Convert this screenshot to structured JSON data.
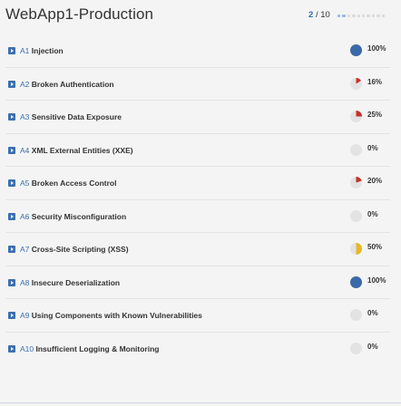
{
  "header": {
    "title": "WebApp1-Production",
    "page_current": "2",
    "page_sep_total": "/ 10",
    "page_total": 10
  },
  "colors": {
    "accent_blue": "#3b6fb0",
    "pie_full": "#3a6aa8",
    "pie_red": "#c8302a",
    "pie_yellow": "#e6b828",
    "pie_empty": "#e3e3e3"
  },
  "items": [
    {
      "code": "A1",
      "name": "Injection",
      "percent": "100%",
      "fraction": 1.0,
      "color": "#3a6aa8"
    },
    {
      "code": "A2",
      "name": "Broken Authentication",
      "percent": "16%",
      "fraction": 0.16,
      "color": "#c8302a"
    },
    {
      "code": "A3",
      "name": "Sensitive Data Exposure",
      "percent": "25%",
      "fraction": 0.25,
      "color": "#c8302a"
    },
    {
      "code": "A4",
      "name": "XML External Entities (XXE)",
      "percent": "0%",
      "fraction": 0.0,
      "color": "#c8302a"
    },
    {
      "code": "A5",
      "name": "Broken Access Control",
      "percent": "20%",
      "fraction": 0.2,
      "color": "#c8302a"
    },
    {
      "code": "A6",
      "name": "Security Misconfiguration",
      "percent": "0%",
      "fraction": 0.0,
      "color": "#c8302a"
    },
    {
      "code": "A7",
      "name": "Cross-Site Scripting (XSS)",
      "percent": "50%",
      "fraction": 0.5,
      "color": "#e6b828"
    },
    {
      "code": "A8",
      "name": "Insecure Deserialization",
      "percent": "100%",
      "fraction": 1.0,
      "color": "#3a6aa8"
    },
    {
      "code": "A9",
      "name": "Using Components with Known Vulnerabilities",
      "percent": "0%",
      "fraction": 0.0,
      "color": "#c8302a"
    },
    {
      "code": "A10",
      "name": "Insufficient Logging & Monitoring",
      "percent": "0%",
      "fraction": 0.0,
      "color": "#c8302a"
    }
  ]
}
